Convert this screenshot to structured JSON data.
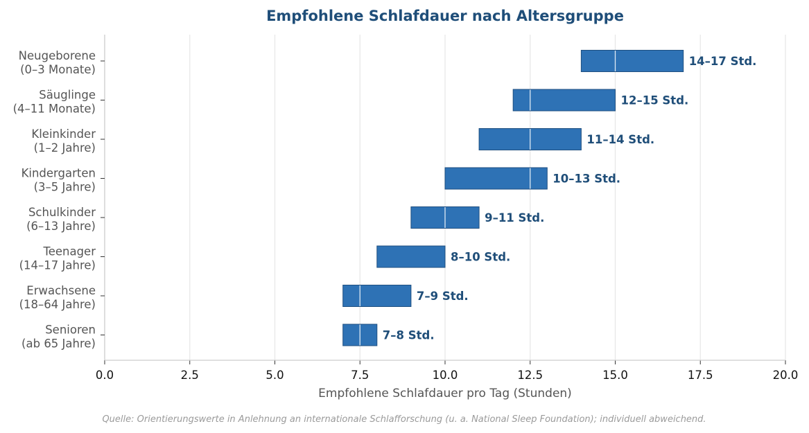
{
  "chart_data": {
    "type": "bar",
    "orientation": "horizontal",
    "style": "range",
    "title": "Empfohlene Schlafdauer nach Altersgruppe",
    "xlabel": "Empfohlene Schlafdauer pro Tag (Stunden)",
    "ylabel": "",
    "xlim": [
      0,
      20
    ],
    "xticks": [
      0,
      2.5,
      5,
      7.5,
      10,
      12.5,
      15,
      17.5,
      20
    ],
    "xtick_labels": [
      "0.0",
      "2.5",
      "5.0",
      "7.5",
      "10.0",
      "12.5",
      "15.0",
      "17.5",
      "20.0"
    ],
    "grid": "vertical",
    "legend": "none",
    "categories": [
      [
        "Neugeborene",
        "(0–3 Monate)"
      ],
      [
        "Säuglinge",
        "(4–11 Monate)"
      ],
      [
        "Kleinkinder",
        "(1–2 Jahre)"
      ],
      [
        "Kindergarten",
        "(3–5 Jahre)"
      ],
      [
        "Schulkinder",
        "(6–13 Jahre)"
      ],
      [
        "Teenager",
        "(14–17 Jahre)"
      ],
      [
        "Erwachsene",
        "(18–64 Jahre)"
      ],
      [
        "Senioren",
        "(ab 65 Jahre)"
      ]
    ],
    "ranges": [
      [
        14,
        17
      ],
      [
        12,
        15
      ],
      [
        11,
        14
      ],
      [
        10,
        13
      ],
      [
        9,
        11
      ],
      [
        8,
        10
      ],
      [
        7,
        9
      ],
      [
        7,
        8
      ]
    ],
    "data_labels": [
      "14–17 Std.",
      "12–15 Std.",
      "11–14 Std.",
      "10–13 Std.",
      "9–11 Std.",
      "8–10 Std.",
      "7–9 Std.",
      "7–8 Std."
    ],
    "source": "Quelle: Orientierungswerte in Anlehnung an internationale Schlafforschung (u. a. National Sleep Foundation); individuell abweichend.",
    "colors": {
      "bar": "#2e72b5",
      "bar_edge": "#1f4f80",
      "title": "#1f4e79",
      "data_label": "#1f4e79",
      "grid": "#e6e6e6",
      "axis": "#cccccc"
    }
  }
}
